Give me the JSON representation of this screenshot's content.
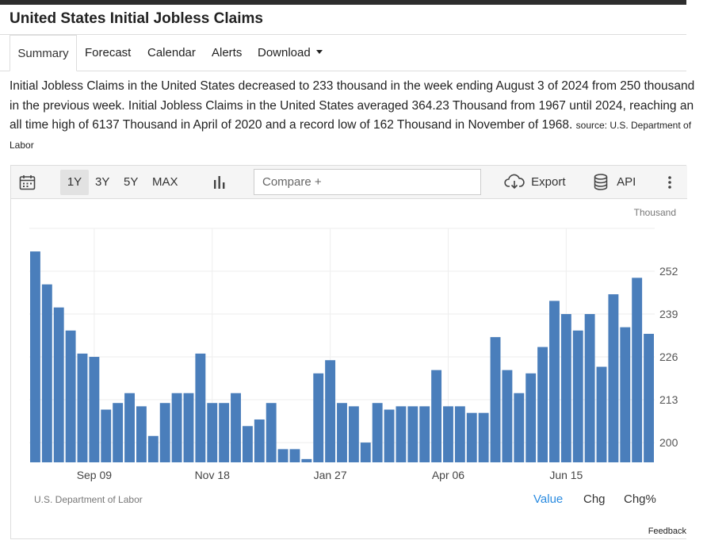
{
  "header": {
    "title": "United States Initial Jobless Claims"
  },
  "tabs": [
    {
      "label": "Summary",
      "active": true
    },
    {
      "label": "Forecast"
    },
    {
      "label": "Calendar"
    },
    {
      "label": "Alerts"
    },
    {
      "label": "Download"
    }
  ],
  "description": {
    "text": "Initial Jobless Claims in the United States decreased to 233 thousand in the week ending August 3 of 2024 from 250 thousand in the previous week. Initial Jobless Claims in the United States averaged 364.23 Thousand from 1967 until 2024, reaching an all time high of 6137 Thousand in April of 2020 and a record low of 162 Thousand in November of 1968.",
    "source": "source: U.S. Department of Labor"
  },
  "toolbar": {
    "calendar_icon": "calendar-icon",
    "ranges": [
      "1Y",
      "3Y",
      "5Y",
      "MAX"
    ],
    "active_range": "1Y",
    "chart_type_icon": "bar-chart-icon",
    "compare_placeholder": "Compare +",
    "export_label": "Export",
    "export_icon": "cloud-download-icon",
    "api_label": "API",
    "api_icon": "database-icon",
    "more_icon": "kebab-menu-icon"
  },
  "chart_footer": {
    "source": "U.S. Department of Labor",
    "views": [
      "Value",
      "Chg",
      "Chg%"
    ],
    "active_view": "Value"
  },
  "feedback_label": "Feedback",
  "colors": {
    "bar": "#4a7ebb",
    "active_view": "#2a8be0",
    "grid": "#eeeeee"
  },
  "chart_data": {
    "type": "bar",
    "ylabel": "Thousand",
    "ylim": [
      194,
      265
    ],
    "yticks": [
      200,
      213,
      226,
      239,
      252
    ],
    "xtick_labels": [
      "Sep 09",
      "Nov 18",
      "Jan 27",
      "Apr 06",
      "Jun 15"
    ],
    "xtick_bar_index": [
      5,
      15,
      25,
      35,
      45
    ],
    "grid": true,
    "values": [
      258,
      248,
      241,
      234,
      227,
      226,
      210,
      212,
      215,
      211,
      202,
      212,
      215,
      215,
      227,
      212,
      212,
      215,
      205,
      207,
      212,
      198,
      198,
      195,
      221,
      225,
      212,
      211,
      200,
      212,
      210,
      211,
      211,
      211,
      222,
      211,
      211,
      209,
      209,
      232,
      222,
      215,
      221,
      229,
      243,
      239,
      234,
      239,
      223,
      245,
      235,
      250,
      233
    ]
  }
}
